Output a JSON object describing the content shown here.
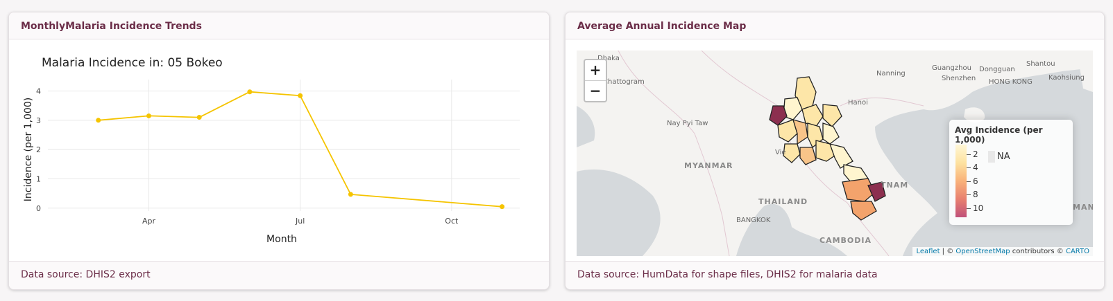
{
  "left_card": {
    "title": "MonthlyMalaria Incidence Trends",
    "footer": "Data source: DHIS2 export"
  },
  "right_card": {
    "title": "Average Annual Incidence Map",
    "footer": "Data source: HumData for shape files, DHIS2 for malaria data"
  },
  "chart_data": {
    "type": "line",
    "title": "Malaria Incidence in: 05 Bokeo",
    "xlabel": "Month",
    "ylabel": "Incidence (per 1,000)",
    "x_ticks": [
      "Apr",
      "Jul",
      "Oct"
    ],
    "y_ticks": [
      "0",
      "1",
      "2",
      "3",
      "4"
    ],
    "ylim": [
      -0.1,
      4.2
    ],
    "grid": true,
    "legend": "none",
    "color": "#f5c400",
    "series": [
      {
        "x": [
          "2023-03",
          "2023-04",
          "2023-05",
          "2023-06",
          "2023-07",
          "2023-08",
          "2023-11"
        ],
        "values": [
          3.0,
          3.15,
          3.1,
          3.97,
          3.84,
          0.47,
          0.05
        ]
      }
    ]
  },
  "map": {
    "zoom_in": "+",
    "zoom_out": "−",
    "legend": {
      "title": "Avg Incidence (per 1,000)",
      "labels": [
        "2",
        "4",
        "6",
        "8",
        "10"
      ],
      "na": "NA"
    },
    "attribution": {
      "leaflet": "Leaflet",
      "sep1": " | © ",
      "osm": "OpenStreetMap",
      "contrib": " contributors © ",
      "carto": "CARTO"
    },
    "labels": {
      "dhaka": "Dhaka",
      "chattogram": "Chattogram",
      "nanning": "Nanning",
      "guangzhou": "Guangzhou",
      "dongguan": "Dongguan",
      "shantou": "Shantou",
      "shenzhen": "Shenzhen",
      "hongkong": "HONG KONG",
      "kaohsiung": "Kaohsiung",
      "hanoi": "Hanoi",
      "naypyitaw": "Nay Pyi Taw",
      "myanmar": "MYANMAR",
      "vientiane": "Vie",
      "thailand": "THAILAND",
      "bangkok": "BANGKOK",
      "cambodia": "CAMBODIA",
      "vietnam": "TNAM",
      "mani": "MANI"
    },
    "colors": {
      "pale": "#fff5cf",
      "light": "#fde6a8",
      "mid": "#f8c489",
      "orange": "#f3a36c",
      "dark": "#8c2f4f"
    }
  }
}
